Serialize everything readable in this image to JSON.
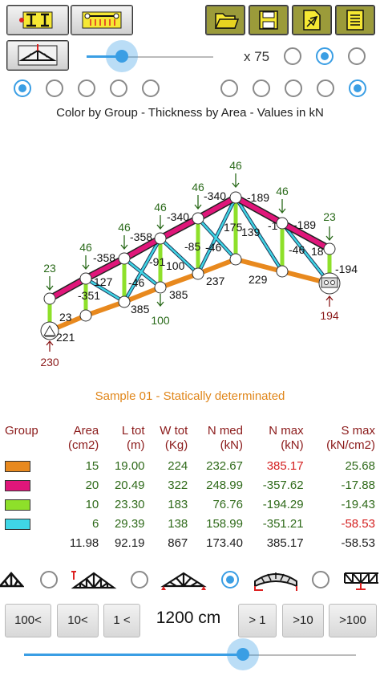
{
  "toolbar": {
    "left_buttons": [
      "section-icon",
      "load-icon",
      "support-icon"
    ],
    "right_buttons": [
      "open-folder-icon",
      "save-disk-icon",
      "export-icon",
      "notes-icon"
    ]
  },
  "scale": {
    "label": "x 75",
    "slider_fraction": 0.28
  },
  "display": {
    "legend": "Color by Group - Thickness by Area - Values in kN",
    "sample_caption": "Sample 01 - Statically determinated"
  },
  "truss": {
    "member_forces": [
      "-351",
      "-358",
      "-358",
      "-340",
      "-340",
      "-189",
      "-1",
      "-189",
      "23",
      "221",
      "385",
      "385",
      "237",
      "229",
      "127",
      "-46",
      "-91",
      "100",
      "-85",
      "-46",
      "175",
      "139",
      "-46",
      "18",
      "-194"
    ],
    "loads": [
      "23",
      "46",
      "46",
      "46",
      "46",
      "46",
      "46",
      "23"
    ],
    "reactions": [
      "230",
      "194"
    ],
    "bottom_label": "100"
  },
  "table": {
    "headers": [
      {
        "l1": "Group",
        "l2": ""
      },
      {
        "l1": "Area",
        "l2": "(cm2)"
      },
      {
        "l1": "L tot",
        "l2": "(m)"
      },
      {
        "l1": "W tot",
        "l2": "(Kg)"
      },
      {
        "l1": "N med",
        "l2": "(kN)"
      },
      {
        "l1": "N max",
        "l2": "(kN)"
      },
      {
        "l1": "S max",
        "l2": "(kN/cm2)"
      }
    ],
    "rows": [
      {
        "color": "#e8891e",
        "area": "15",
        "ltot": "19.00",
        "wtot": "224",
        "nmed": "232.67",
        "nmax": "385.17",
        "smax": "25.68"
      },
      {
        "color": "#e0167a",
        "area": "20",
        "ltot": "20.49",
        "wtot": "322",
        "nmed": "248.99",
        "nmax": "-357.62",
        "smax": "-17.88"
      },
      {
        "color": "#8ee02a",
        "area": "10",
        "ltot": "23.30",
        "wtot": "183",
        "nmed": "76.76",
        "nmax": "-194.29",
        "smax": "-19.43"
      },
      {
        "color": "#3fd6e6",
        "area": "6",
        "ltot": "29.39",
        "wtot": "138",
        "nmed": "158.99",
        "nmax": "-351.21",
        "smax": "-58.53"
      }
    ],
    "total": {
      "area": "11.98",
      "ltot": "92.19",
      "wtot": "867",
      "nmed": "173.40",
      "nmax": "385.17",
      "smax": "-58.53"
    }
  },
  "truss_types": [
    "fink-truss-icon",
    "howe-truss-icon",
    "pratt-truss-icon",
    "bowstring-truss-icon",
    "flat-truss-icon"
  ],
  "nav": {
    "buttons": [
      "100<",
      "10<",
      "1 <",
      "> 1",
      ">10",
      ">100"
    ],
    "length": "1200 cm",
    "slider_fraction": 0.66
  }
}
